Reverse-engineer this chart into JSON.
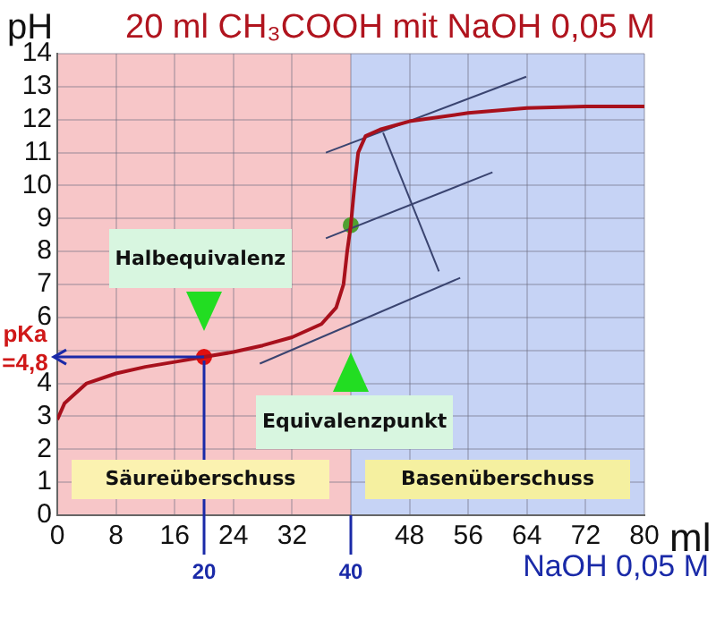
{
  "chart_data": {
    "type": "line",
    "title": "20 ml CH₃COOH mit NaOH 0,05 M",
    "xlabel": "ml",
    "ylabel": "pH",
    "xlim": [
      0,
      80
    ],
    "xticks": [
      0,
      8,
      16,
      24,
      32,
      {
        "value": 40,
        "label": null
      },
      48,
      56,
      64,
      72,
      80
    ],
    "ylim": [
      0,
      14
    ],
    "yticks": [
      0,
      1,
      2,
      3,
      4,
      {
        "value": 5,
        "label": null
      },
      6,
      7,
      8,
      9,
      10,
      11,
      12,
      13,
      14
    ],
    "grid": true,
    "legend": false,
    "marker": "none",
    "line_style": "solid",
    "series": [
      {
        "type": "line",
        "color": "#a8101c",
        "x": [
          0,
          1,
          2,
          4,
          8,
          12,
          16,
          20,
          24,
          28,
          32,
          36,
          38,
          39,
          39.5,
          40,
          40.5,
          41,
          42,
          44,
          48,
          56,
          64,
          72,
          80
        ],
        "values": [
          2.9,
          3.4,
          3.6,
          4.0,
          4.3,
          4.5,
          4.65,
          4.8,
          4.95,
          5.15,
          5.4,
          5.8,
          6.3,
          7.0,
          8.0,
          8.8,
          10.0,
          11.0,
          11.5,
          11.7,
          11.95,
          12.2,
          12.35,
          12.4,
          12.4
        ]
      },
      {
        "type": "line",
        "color": "#3a4470",
        "x": [
          36.6,
          63.9
        ],
        "values": [
          11.0,
          13.3
        ]
      },
      {
        "type": "line",
        "color": "#3a4470",
        "x": [
          36.6,
          59.3
        ],
        "values": [
          8.4,
          10.4
        ]
      },
      {
        "type": "line",
        "color": "#3a4470",
        "x": [
          27.6,
          54.9
        ],
        "values": [
          4.6,
          7.2
        ]
      },
      {
        "type": "line",
        "color": "#3a4470",
        "x": [
          44.4,
          52
        ],
        "values": [
          11.6,
          7.4
        ]
      },
      {
        "type": "scatter",
        "marker": "circle",
        "color": "#e01010",
        "x": [
          20
        ],
        "values": [
          4.8
        ]
      },
      {
        "type": "scatter",
        "marker": "circle",
        "color": "#50a030",
        "x": [
          40
        ],
        "values": [
          8.8
        ]
      }
    ],
    "bands": [
      {
        "axis": "x",
        "from": 0,
        "to": 40,
        "color": "#f7c6c8"
      },
      {
        "axis": "x",
        "from": 40,
        "to": 80,
        "color": "#c6d3f5"
      }
    ],
    "ref_lines": [
      {
        "axis": "x",
        "value": 20,
        "label": "20",
        "color": "#1a2aa8"
      },
      {
        "axis": "x",
        "value": 40,
        "label": "40",
        "color": "#1a2aa8"
      },
      {
        "axis": "y",
        "value": 4.8,
        "label": "pKa =4,8",
        "color": "#1a2aa8"
      }
    ],
    "annotations": [
      "Halbequivalenz",
      "Equivalenzpunkt",
      "Säureüberschuss",
      "Basenüberschuss",
      "NaOH 0,05 M"
    ]
  }
}
